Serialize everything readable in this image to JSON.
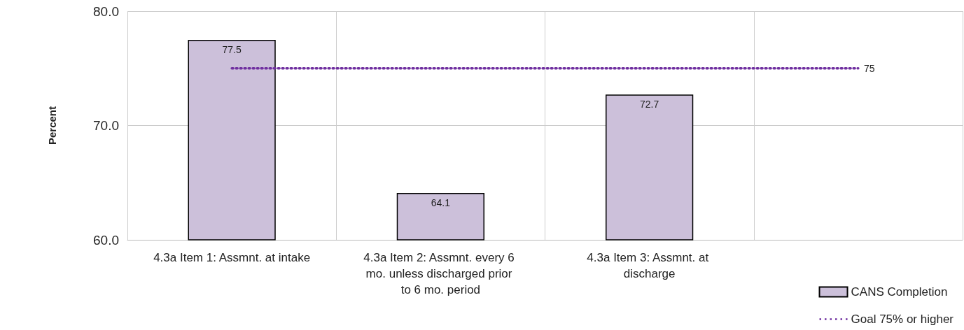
{
  "chart_data": {
    "type": "bar",
    "ylabel": "Percent",
    "categories": [
      "4.3a Item 1: Assmnt. at intake",
      "4.3a Item 2: Assmnt. every 6 mo. unless discharged prior to 6 mo. period",
      "4.3a Item 3: Assmnt. at discharge",
      null
    ],
    "series": [
      {
        "name": "CANS Completion",
        "color": "#ccc0da",
        "values": [
          77.5,
          64.1,
          72.7,
          null
        ]
      },
      {
        "name": "Goal 75% or higher",
        "type": "line",
        "color": "#7030a0",
        "line_style": "dotted",
        "marker": "none",
        "values": [
          75,
          75,
          75,
          75
        ],
        "value_labels": [
          null,
          null,
          null,
          "75"
        ]
      }
    ],
    "data_labels": true,
    "ylim": [
      60,
      80
    ],
    "yticks": [
      {
        "value": 60,
        "label": "60.0"
      },
      {
        "value": 70,
        "label": "70.0"
      },
      {
        "value": 80,
        "label": "80.0"
      }
    ],
    "grid": true,
    "legend": "bottom right"
  }
}
